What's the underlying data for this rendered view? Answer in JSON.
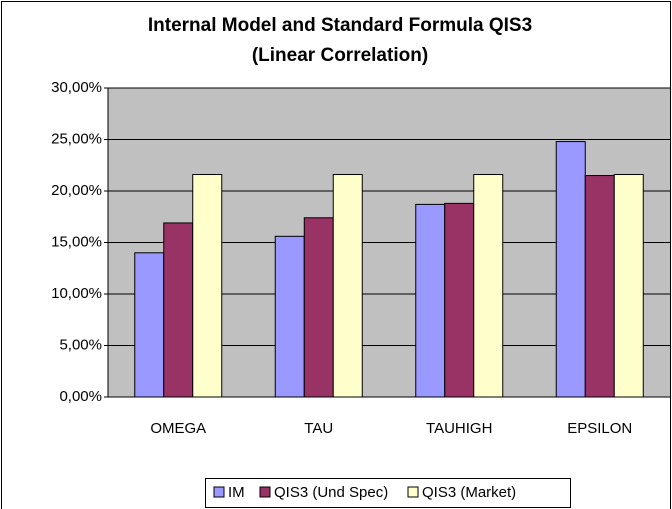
{
  "chart_data": {
    "type": "bar",
    "title": [
      "Internal Model and Standard Formula QIS3",
      "(Linear Correlation)"
    ],
    "categories": [
      "OMEGA",
      "TAU",
      "TAUHIGH",
      "EPSILON"
    ],
    "series": [
      {
        "name": "IM",
        "color": "#9999ff",
        "values": [
          14.0,
          15.6,
          18.7,
          24.8
        ]
      },
      {
        "name": "QIS3 (Und Spec)",
        "color": "#993366",
        "values": [
          16.9,
          17.4,
          18.8,
          21.5
        ]
      },
      {
        "name": "QIS3 (Market)",
        "color": "#ffffcc",
        "values": [
          21.6,
          21.6,
          21.6,
          21.6
        ]
      }
    ],
    "ylim": [
      0,
      30
    ],
    "yticks": [
      {
        "value": 0,
        "label": "0,00%"
      },
      {
        "value": 5,
        "label": "5,00%"
      },
      {
        "value": 10,
        "label": "10,00%"
      },
      {
        "value": 15,
        "label": "15,00%"
      },
      {
        "value": 20,
        "label": "20,00%"
      },
      {
        "value": 25,
        "label": "25,00%"
      },
      {
        "value": 30,
        "label": "30,00%"
      }
    ],
    "grid": true,
    "legend": "bottom"
  }
}
